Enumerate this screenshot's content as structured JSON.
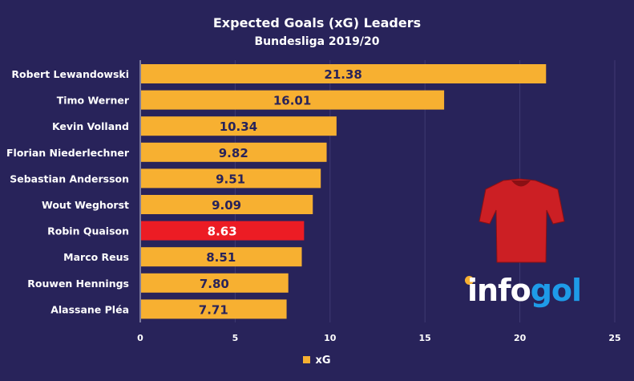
{
  "chart_data": {
    "type": "bar",
    "orientation": "horizontal",
    "title": "Expected Goals  (xG) Leaders",
    "subtitle": "Bundesliga 2019/20",
    "categories": [
      "Robert Lewandowski",
      "Timo Werner",
      "Kevin Volland",
      "Florian Niederlechner",
      "Sebastian Andersson",
      "Wout Weghorst",
      "Robin Quaison",
      "Marco Reus",
      "Rouwen Hennings",
      "Alassane Pléa"
    ],
    "values": [
      21.38,
      16.01,
      10.34,
      9.82,
      9.51,
      9.09,
      8.63,
      8.51,
      7.8,
      7.71
    ],
    "value_labels": [
      "21.38",
      "16.01",
      "10.34",
      "9.82",
      "9.51",
      "9.09",
      "8.63",
      "8.51",
      "7.80",
      "7.71"
    ],
    "highlight_index": 6,
    "xlim": [
      0,
      25
    ],
    "xticks": [
      "0",
      "5",
      "10",
      "15",
      "20",
      "25"
    ],
    "grid": true,
    "legend": {
      "entries": [
        "xG"
      ],
      "placement": "bottom"
    },
    "colors": {
      "bar": "#f7b031",
      "highlight": "#ec1c24",
      "label": "#28235a",
      "highlight_label": "#ffffff"
    }
  },
  "logo": {
    "part1": "info",
    "part2": "gol"
  }
}
